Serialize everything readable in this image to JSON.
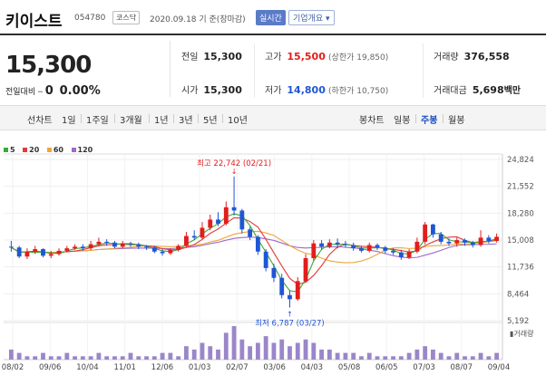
{
  "header": {
    "name": "키이스트",
    "code": "054780",
    "market": "코스닥",
    "date": "2020.09.18 기 준(장마감)",
    "realtime": "실시간",
    "overview": "기업개요 ▾"
  },
  "quote": {
    "price": "15,300",
    "change_label": "전일대비",
    "change_arrow": "━",
    "change_value": "0",
    "change_pct": "0.00%"
  },
  "info": {
    "prev_label": "전일",
    "prev": "15,300",
    "high_label": "고가",
    "high": "15,500",
    "upper_limit": "(상한가 19,850)",
    "volume_label": "거래량",
    "volume": "376,558",
    "open_label": "시가",
    "open": "15,300",
    "low_label": "저가",
    "low": "14,800",
    "lower_limit": "(하한가 10,750)",
    "amount_label": "거래대금",
    "amount": "5,698",
    "amount_unit": "백만"
  },
  "tabs": {
    "line_chart": "선차트",
    "day1": "1일",
    "week1": "1주일",
    "month3": "3개월",
    "year1": "1년",
    "year3": "3년",
    "year5": "5년",
    "year10": "10년",
    "candle_chart": "봉차트",
    "daily": "일봉",
    "weekly": "주봉",
    "monthly": "월봉"
  },
  "colors": {
    "ma5": "#3aa83a",
    "ma20": "#e23b3b",
    "ma60": "#f0a43a",
    "ma120": "#9b6bc8",
    "up": "#e21d1d",
    "down": "#1f56d4",
    "volume": "#9b86c9"
  },
  "legend": [
    {
      "label": "5",
      "color": "#3aa83a"
    },
    {
      "label": "20",
      "color": "#e23b3b"
    },
    {
      "label": "60",
      "color": "#f0a43a"
    },
    {
      "label": "120",
      "color": "#9b6bc8"
    }
  ],
  "chart_data": {
    "type": "candlestick",
    "y_ticks": [
      "24,824",
      "21,552",
      "18,280",
      "15,008",
      "11,736",
      "8,464",
      "5,192"
    ],
    "y_range": [
      5192,
      24824
    ],
    "x_ticks": [
      "08/02",
      "09/06",
      "10/04",
      "11/01",
      "12/06",
      "01/03",
      "02/07",
      "03/06",
      "04/03",
      "05/08",
      "06/05",
      "07/03",
      "08/07",
      "09/04"
    ],
    "high_annotation": "최고 22,742 (02/21)",
    "low_annotation": "최저 6,787 (03/27)",
    "volume_label": "거래량",
    "candles": [
      [
        14200,
        14100,
        14900,
        13600
      ],
      [
        14100,
        13000,
        14300,
        12800
      ],
      [
        13000,
        13600,
        14000,
        12700
      ],
      [
        13600,
        13900,
        14300,
        13300
      ],
      [
        13900,
        13100,
        14000,
        12900
      ],
      [
        13100,
        13300,
        13700,
        12800
      ],
      [
        13300,
        13700,
        14000,
        13100
      ],
      [
        13700,
        14000,
        14300,
        13500
      ],
      [
        14000,
        14200,
        14500,
        13800
      ],
      [
        14200,
        14000,
        14500,
        13700
      ],
      [
        14000,
        14500,
        14900,
        13800
      ],
      [
        14500,
        14800,
        15300,
        14300
      ],
      [
        14800,
        14700,
        15100,
        14300
      ],
      [
        14700,
        14200,
        14900,
        14000
      ],
      [
        14200,
        14600,
        14900,
        14000
      ],
      [
        14600,
        14500,
        14800,
        14200
      ],
      [
        14500,
        14200,
        14700,
        13900
      ],
      [
        14200,
        14100,
        14400,
        13800
      ],
      [
        14100,
        13600,
        14300,
        13400
      ],
      [
        13600,
        13400,
        13900,
        13100
      ],
      [
        13400,
        13800,
        14000,
        13200
      ],
      [
        13800,
        14300,
        14500,
        13600
      ],
      [
        14300,
        15500,
        16000,
        14100
      ],
      [
        15500,
        15300,
        16200,
        15000
      ],
      [
        15300,
        16500,
        17200,
        15100
      ],
      [
        16500,
        17500,
        18100,
        16200
      ],
      [
        17500,
        17000,
        18400,
        16700
      ],
      [
        17000,
        19000,
        19700,
        16800
      ],
      [
        19000,
        18600,
        22742,
        18000
      ],
      [
        18600,
        16300,
        18800,
        15800
      ],
      [
        16300,
        15400,
        16600,
        15000
      ],
      [
        15400,
        13600,
        15600,
        13200
      ],
      [
        13600,
        11600,
        13900,
        11200
      ],
      [
        11600,
        10400,
        12100,
        9900
      ],
      [
        10400,
        8300,
        10900,
        7900
      ],
      [
        8300,
        7800,
        8900,
        6787
      ],
      [
        7800,
        10000,
        10500,
        7600
      ],
      [
        10000,
        12800,
        13300,
        9800
      ],
      [
        12800,
        14600,
        15000,
        12500
      ],
      [
        14600,
        14200,
        15000,
        13800
      ],
      [
        14200,
        14700,
        15100,
        14000
      ],
      [
        14700,
        14500,
        15200,
        14000
      ],
      [
        14500,
        14400,
        14900,
        14100
      ],
      [
        14400,
        14000,
        14700,
        13700
      ],
      [
        14000,
        13700,
        14300,
        13500
      ],
      [
        13700,
        14400,
        14700,
        13500
      ],
      [
        14400,
        14100,
        14600,
        13800
      ],
      [
        14100,
        13700,
        14300,
        13400
      ],
      [
        13700,
        13500,
        14000,
        13200
      ],
      [
        13500,
        12900,
        13800,
        12600
      ],
      [
        12900,
        13600,
        13900,
        12700
      ],
      [
        13600,
        14800,
        15300,
        13400
      ],
      [
        14800,
        16900,
        17200,
        14500
      ],
      [
        16900,
        15700,
        17000,
        15300
      ],
      [
        15700,
        14800,
        16000,
        14500
      ],
      [
        14800,
        14600,
        15200,
        14300
      ],
      [
        14600,
        15000,
        15300,
        14200
      ],
      [
        15000,
        14700,
        15200,
        14300
      ],
      [
        14700,
        14400,
        14900,
        14100
      ],
      [
        14400,
        15300,
        16200,
        14200
      ],
      [
        15300,
        14900,
        15600,
        14600
      ],
      [
        14900,
        15400,
        15800,
        14700
      ]
    ],
    "volume": [
      3,
      2,
      1,
      1,
      2,
      1,
      1,
      2,
      1,
      1,
      1,
      2,
      1,
      1,
      1,
      2,
      1,
      1,
      1,
      2,
      2,
      1,
      4,
      3,
      5,
      4,
      3,
      8,
      10,
      6,
      4,
      5,
      7,
      5,
      6,
      4,
      5,
      6,
      5,
      3,
      3,
      2,
      2,
      2,
      1,
      2,
      1,
      1,
      1,
      1,
      2,
      3,
      4,
      3,
      2,
      1,
      2,
      1,
      1,
      2,
      1,
      2
    ]
  }
}
